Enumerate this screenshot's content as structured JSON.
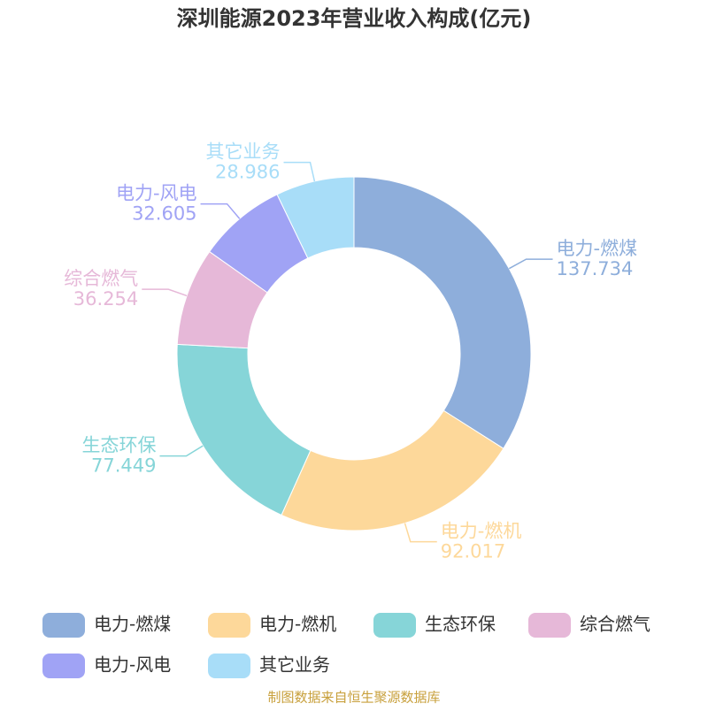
{
  "chart_data": {
    "type": "donut",
    "title": "深圳能源2023年营业收入构成(亿元)",
    "categories": [
      "电力-燃煤",
      "电力-燃机",
      "生态环保",
      "综合燃气",
      "电力-风电",
      "其它业务"
    ],
    "values": [
      137.734,
      92.017,
      77.449,
      36.254,
      32.605,
      28.986
    ],
    "colors": [
      "#8eaedb",
      "#fdd89a",
      "#86d5d8",
      "#e6b8d8",
      "#a0a3f5",
      "#a8ddf8"
    ],
    "legend": "bottom",
    "source": "制图数据来自恒生聚源数据库"
  }
}
